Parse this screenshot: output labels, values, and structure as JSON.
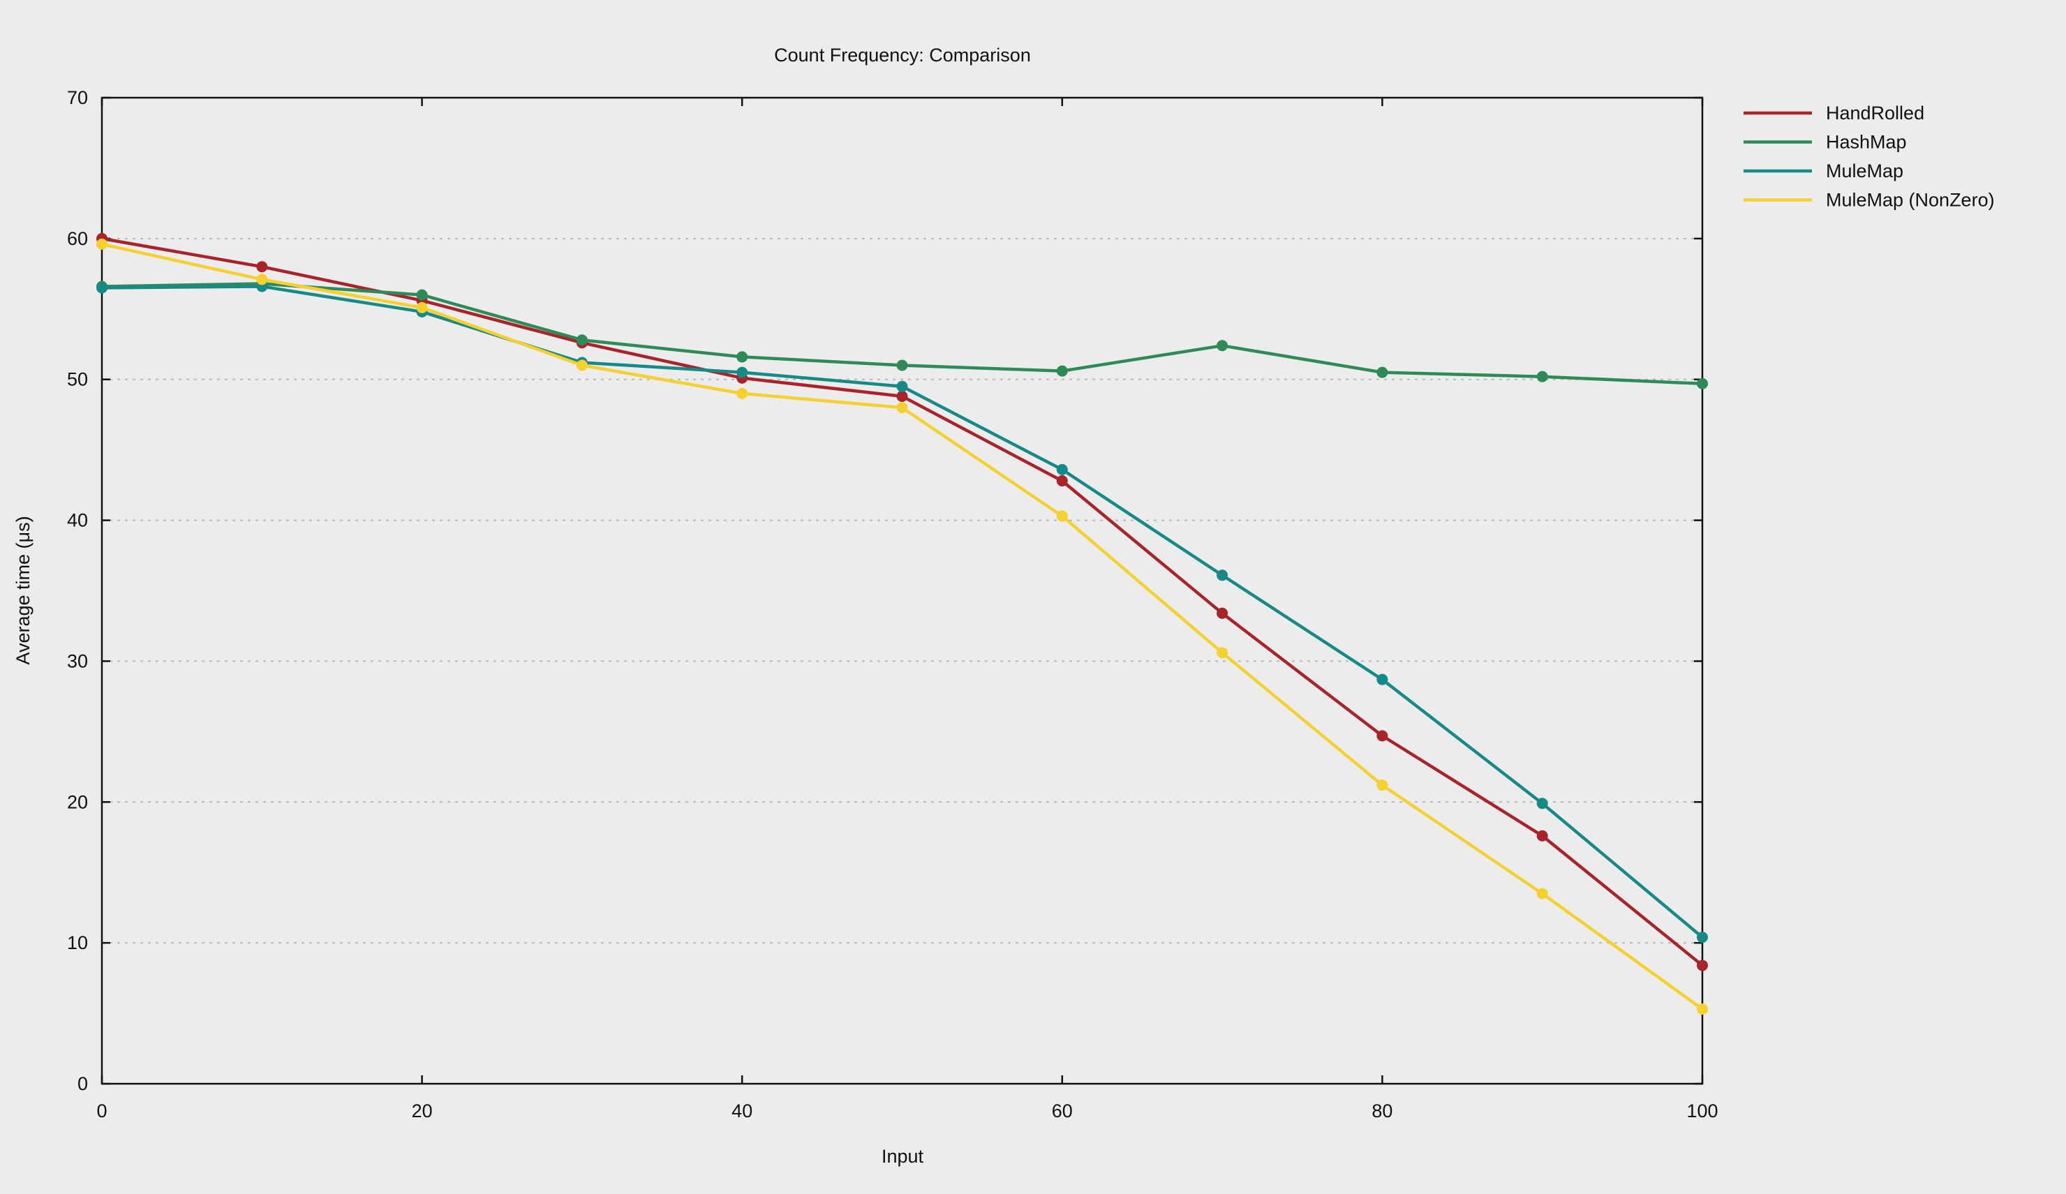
{
  "chart_data": {
    "type": "line",
    "title": "Count Frequency: Comparison",
    "xlabel": "Input",
    "ylabel": "Average time (μs)",
    "xlim": [
      0,
      100
    ],
    "ylim": [
      0,
      70
    ],
    "x_ticks": [
      0,
      20,
      40,
      60,
      80,
      100
    ],
    "y_ticks": [
      0,
      10,
      20,
      30,
      40,
      50,
      60,
      70
    ],
    "grid": "horizontal dashed",
    "legend_position": "right, outside plot area, top",
    "x": [
      0,
      10,
      20,
      30,
      40,
      50,
      60,
      70,
      80,
      90,
      100
    ],
    "series": [
      {
        "name": "HandRolled",
        "color": "#a8232a",
        "values": [
          60.0,
          58.0,
          55.6,
          52.6,
          50.1,
          48.8,
          42.8,
          33.4,
          24.7,
          17.6,
          8.4
        ]
      },
      {
        "name": "HashMap",
        "color": "#2e8b57",
        "values": [
          56.6,
          56.8,
          56.0,
          52.8,
          51.6,
          51.0,
          50.6,
          52.4,
          50.5,
          50.2,
          49.7
        ]
      },
      {
        "name": "MuleMap",
        "color": "#168a87",
        "values": [
          56.5,
          56.6,
          54.8,
          51.2,
          50.5,
          49.5,
          43.6,
          36.1,
          28.7,
          19.9,
          10.4
        ]
      },
      {
        "name": "MuleMap (NonZero)",
        "color": "#f5d130",
        "values": [
          59.6,
          57.1,
          55.1,
          51.0,
          49.0,
          48.0,
          40.3,
          30.6,
          21.2,
          13.5,
          5.3
        ]
      }
    ]
  }
}
